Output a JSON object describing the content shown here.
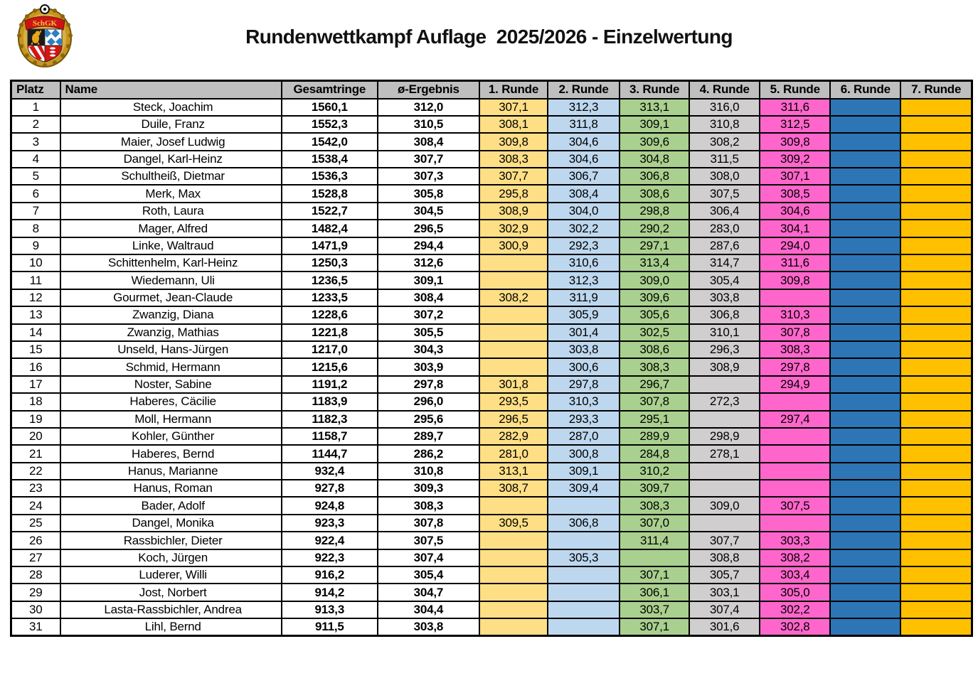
{
  "title": "Rundenwettkampf Auflage  2025/2026 - Einzelwertung",
  "logo": {
    "text": "SchGK"
  },
  "colors": {
    "header_bg": "#bfbfbf",
    "round_colors": [
      "#ffdf86",
      "#bdd7ee",
      "#a9d08e",
      "#d0cece",
      "#ff66cc",
      "#2e75b6",
      "#ffc000"
    ],
    "border": "#000000"
  },
  "table": {
    "headers": [
      "Platz",
      "Name",
      "Gesamtringe",
      "ø-Ergebnis",
      "1. Runde",
      "2. Runde",
      "3. Runde",
      "4. Runde",
      "5. Runde",
      "6. Runde",
      "7. Runde"
    ],
    "rows": [
      {
        "platz": "1",
        "name": "Steck, Joachim",
        "gesamt": "1560,1",
        "avg": "312,0",
        "runden": [
          "307,1",
          "312,3",
          "313,1",
          "316,0",
          "311,6",
          "",
          ""
        ]
      },
      {
        "platz": "2",
        "name": "Duile, Franz",
        "gesamt": "1552,3",
        "avg": "310,5",
        "runden": [
          "308,1",
          "311,8",
          "309,1",
          "310,8",
          "312,5",
          "",
          ""
        ]
      },
      {
        "platz": "3",
        "name": "Maier, Josef Ludwig",
        "gesamt": "1542,0",
        "avg": "308,4",
        "runden": [
          "309,8",
          "304,6",
          "309,6",
          "308,2",
          "309,8",
          "",
          ""
        ]
      },
      {
        "platz": "4",
        "name": "Dangel, Karl-Heinz",
        "gesamt": "1538,4",
        "avg": "307,7",
        "runden": [
          "308,3",
          "304,6",
          "304,8",
          "311,5",
          "309,2",
          "",
          ""
        ]
      },
      {
        "platz": "5",
        "name": "Schultheiß, Dietmar",
        "gesamt": "1536,3",
        "avg": "307,3",
        "runden": [
          "307,7",
          "306,7",
          "306,8",
          "308,0",
          "307,1",
          "",
          ""
        ]
      },
      {
        "platz": "6",
        "name": "Merk, Max",
        "gesamt": "1528,8",
        "avg": "305,8",
        "runden": [
          "295,8",
          "308,4",
          "308,6",
          "307,5",
          "308,5",
          "",
          ""
        ]
      },
      {
        "platz": "7",
        "name": "Roth, Laura",
        "gesamt": "1522,7",
        "avg": "304,5",
        "runden": [
          "308,9",
          "304,0",
          "298,8",
          "306,4",
          "304,6",
          "",
          ""
        ]
      },
      {
        "platz": "8",
        "name": "Mager, Alfred",
        "gesamt": "1482,4",
        "avg": "296,5",
        "runden": [
          "302,9",
          "302,2",
          "290,2",
          "283,0",
          "304,1",
          "",
          ""
        ]
      },
      {
        "platz": "9",
        "name": "Linke, Waltraud",
        "gesamt": "1471,9",
        "avg": "294,4",
        "runden": [
          "300,9",
          "292,3",
          "297,1",
          "287,6",
          "294,0",
          "",
          ""
        ]
      },
      {
        "platz": "10",
        "name": "Schittenhelm, Karl-Heinz",
        "gesamt": "1250,3",
        "avg": "312,6",
        "runden": [
          "",
          "310,6",
          "313,4",
          "314,7",
          "311,6",
          "",
          ""
        ]
      },
      {
        "platz": "11",
        "name": "Wiedemann, Uli",
        "gesamt": "1236,5",
        "avg": "309,1",
        "runden": [
          "",
          "312,3",
          "309,0",
          "305,4",
          "309,8",
          "",
          ""
        ]
      },
      {
        "platz": "12",
        "name": "Gourmet, Jean-Claude",
        "gesamt": "1233,5",
        "avg": "308,4",
        "runden": [
          "308,2",
          "311,9",
          "309,6",
          "303,8",
          "",
          "",
          ""
        ]
      },
      {
        "platz": "13",
        "name": "Zwanzig, Diana",
        "gesamt": "1228,6",
        "avg": "307,2",
        "runden": [
          "",
          "305,9",
          "305,6",
          "306,8",
          "310,3",
          "",
          ""
        ]
      },
      {
        "platz": "14",
        "name": "Zwanzig, Mathias",
        "gesamt": "1221,8",
        "avg": "305,5",
        "runden": [
          "",
          "301,4",
          "302,5",
          "310,1",
          "307,8",
          "",
          ""
        ]
      },
      {
        "platz": "15",
        "name": "Unseld, Hans-Jürgen",
        "gesamt": "1217,0",
        "avg": "304,3",
        "runden": [
          "",
          "303,8",
          "308,6",
          "296,3",
          "308,3",
          "",
          ""
        ]
      },
      {
        "platz": "16",
        "name": "Schmid, Hermann",
        "gesamt": "1215,6",
        "avg": "303,9",
        "runden": [
          "",
          "300,6",
          "308,3",
          "308,9",
          "297,8",
          "",
          ""
        ]
      },
      {
        "platz": "17",
        "name": "Noster, Sabine",
        "gesamt": "1191,2",
        "avg": "297,8",
        "runden": [
          "301,8",
          "297,8",
          "296,7",
          "",
          "294,9",
          "",
          ""
        ]
      },
      {
        "platz": "18",
        "name": "Haberes, Cäcilie",
        "gesamt": "1183,9",
        "avg": "296,0",
        "runden": [
          "293,5",
          "310,3",
          "307,8",
          "272,3",
          "",
          "",
          ""
        ]
      },
      {
        "platz": "19",
        "name": "Moll, Hermann",
        "gesamt": "1182,3",
        "avg": "295,6",
        "runden": [
          "296,5",
          "293,3",
          "295,1",
          "",
          "297,4",
          "",
          ""
        ]
      },
      {
        "platz": "20",
        "name": "Kohler, Günther",
        "gesamt": "1158,7",
        "avg": "289,7",
        "runden": [
          "282,9",
          "287,0",
          "289,9",
          "298,9",
          "",
          "",
          ""
        ]
      },
      {
        "platz": "21",
        "name": "Haberes, Bernd",
        "gesamt": "1144,7",
        "avg": "286,2",
        "runden": [
          "281,0",
          "300,8",
          "284,8",
          "278,1",
          "",
          "",
          ""
        ]
      },
      {
        "platz": "22",
        "name": "Hanus, Marianne",
        "gesamt": "932,4",
        "avg": "310,8",
        "runden": [
          "313,1",
          "309,1",
          "310,2",
          "",
          "",
          "",
          ""
        ]
      },
      {
        "platz": "23",
        "name": "Hanus, Roman",
        "gesamt": "927,8",
        "avg": "309,3",
        "runden": [
          "308,7",
          "309,4",
          "309,7",
          "",
          "",
          "",
          ""
        ]
      },
      {
        "platz": "24",
        "name": "Bader, Adolf",
        "gesamt": "924,8",
        "avg": "308,3",
        "runden": [
          "",
          "",
          "308,3",
          "309,0",
          "307,5",
          "",
          ""
        ]
      },
      {
        "platz": "25",
        "name": "Dangel, Monika",
        "gesamt": "923,3",
        "avg": "307,8",
        "runden": [
          "309,5",
          "306,8",
          "307,0",
          "",
          "",
          "",
          ""
        ]
      },
      {
        "platz": "26",
        "name": "Rassbichler, Dieter",
        "gesamt": "922,4",
        "avg": "307,5",
        "runden": [
          "",
          "",
          "311,4",
          "307,7",
          "303,3",
          "",
          ""
        ]
      },
      {
        "platz": "27",
        "name": "Koch, Jürgen",
        "gesamt": "922,3",
        "avg": "307,4",
        "runden": [
          "",
          "305,3",
          "",
          "308,8",
          "308,2",
          "",
          ""
        ]
      },
      {
        "platz": "28",
        "name": "Luderer, Willi",
        "gesamt": "916,2",
        "avg": "305,4",
        "runden": [
          "",
          "",
          "307,1",
          "305,7",
          "303,4",
          "",
          ""
        ]
      },
      {
        "platz": "29",
        "name": "Jost, Norbert",
        "gesamt": "914,2",
        "avg": "304,7",
        "runden": [
          "",
          "",
          "306,1",
          "303,1",
          "305,0",
          "",
          ""
        ]
      },
      {
        "platz": "30",
        "name": "Lasta-Rassbichler, Andrea",
        "gesamt": "913,3",
        "avg": "304,4",
        "runden": [
          "",
          "",
          "303,7",
          "307,4",
          "302,2",
          "",
          ""
        ]
      },
      {
        "platz": "31",
        "name": "Lihl, Bernd",
        "gesamt": "911,5",
        "avg": "303,8",
        "runden": [
          "",
          "",
          "307,1",
          "301,6",
          "302,8",
          "",
          ""
        ]
      }
    ]
  }
}
